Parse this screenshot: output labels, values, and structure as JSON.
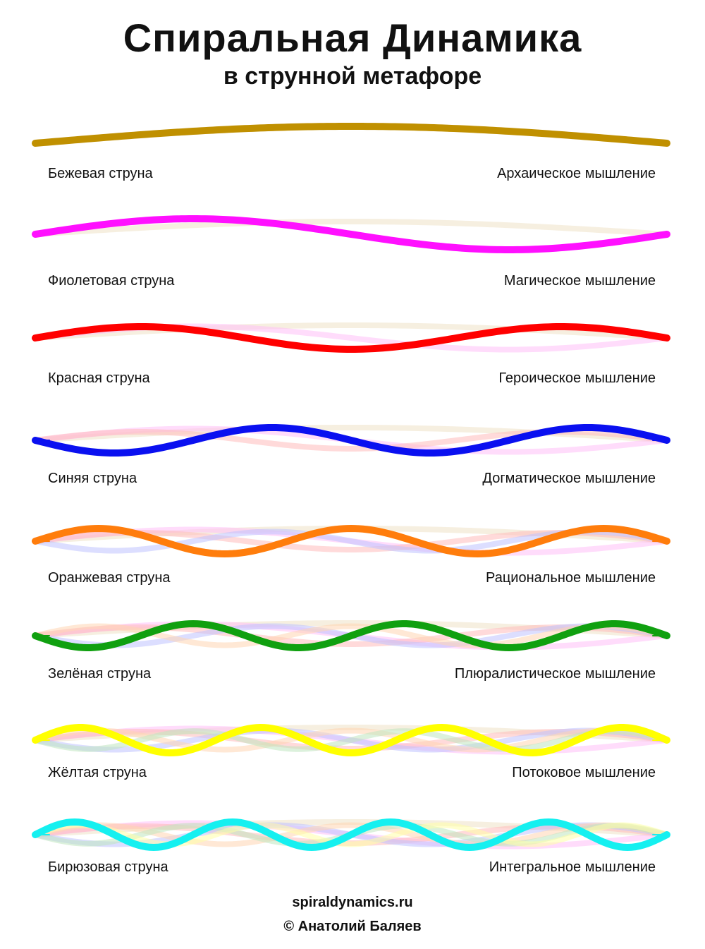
{
  "title": "Спиральная Динамика",
  "subtitle": "в струнной метафоре",
  "strings": [
    {
      "name": "Бежевая струна",
      "mode": "Архаическое мышление",
      "color": "#c09000",
      "faint": "#efe2c6"
    },
    {
      "name": "Фиолетовая струна",
      "mode": "Магическое мышление",
      "color": "#ff10ff",
      "faint": "#ffc0f8"
    },
    {
      "name": "Красная струна",
      "mode": "Героическое мышление",
      "color": "#ff0000",
      "faint": "#ffbcbc"
    },
    {
      "name": "Синяя струна",
      "mode": "Догматическое мышление",
      "color": "#0a10f0",
      "faint": "#c0c2ff"
    },
    {
      "name": "Оранжевая струна",
      "mode": "Рациональное мышление",
      "color": "#ff7d0c",
      "faint": "#ffd6b2"
    },
    {
      "name": "Зелёная струна",
      "mode": "Плюралистическое мышление",
      "color": "#10a010",
      "faint": "#bfe6bf"
    },
    {
      "name": "Жёлтая струна",
      "mode": "Потоковое мышление",
      "color": "#ffff00",
      "faint": "#ffffa8"
    },
    {
      "name": "Бирюзовая струна",
      "mode": "Интегральное мышление",
      "color": "#15f0f0",
      "faint": "#b6f8f8"
    }
  ],
  "footer": {
    "site": "spiraldynamics.ru",
    "copyright": "© Анатолий Баляев"
  }
}
